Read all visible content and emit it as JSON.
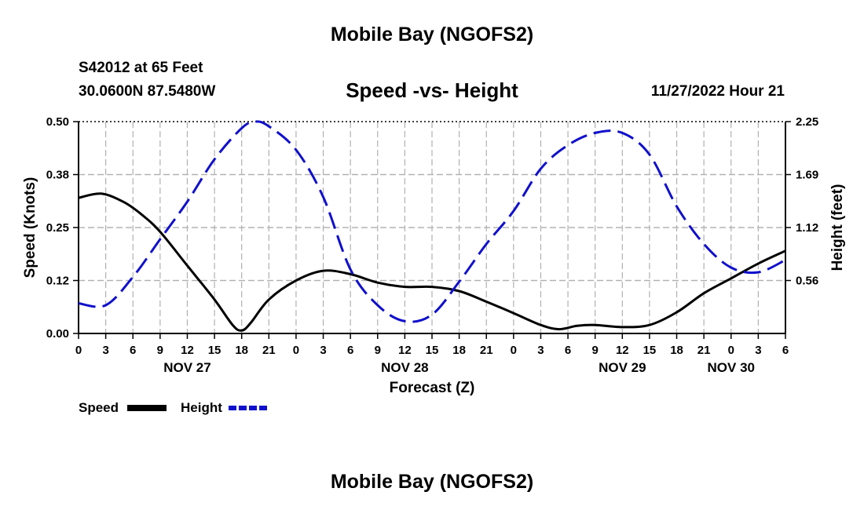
{
  "header": {
    "title": "Mobile Bay (NGOFS2)",
    "station": "S42012 at 65 Feet",
    "coordinates": "30.0600N  87.5480W",
    "chart_title": "Speed -vs- Height",
    "run_time": "11/27/2022 Hour 21"
  },
  "footer": {
    "title": "Mobile Bay (NGOFS2)"
  },
  "colors": {
    "speed": "#000000",
    "height": "#1010cc",
    "grid": "#b0b0b0"
  },
  "chart_data": {
    "type": "line",
    "title": "Speed -vs- Height",
    "xlabel": "Forecast (Z)",
    "ylabel_left": "Speed (Knots)",
    "ylabel_right": "Height (feet)",
    "x_unit": "hours since Nov 27 00Z",
    "xlim": [
      0,
      78
    ],
    "ylim_left": [
      0,
      0.5
    ],
    "ylim_right": [
      0,
      2.25
    ],
    "left_ticks": [
      "0.00",
      "0.12",
      "0.25",
      "0.38",
      "0.50"
    ],
    "left_tick_values": [
      0,
      0.125,
      0.25,
      0.375,
      0.5
    ],
    "right_ticks": [
      "0.56",
      "1.12",
      "1.69",
      "2.25"
    ],
    "right_tick_values": [
      0.5625,
      1.125,
      1.6875,
      2.25
    ],
    "x_tick_labels": [
      "0",
      "3",
      "6",
      "9",
      "12",
      "15",
      "18",
      "21",
      "0",
      "3",
      "6",
      "9",
      "12",
      "15",
      "18",
      "21",
      "0",
      "3",
      "6",
      "9",
      "12",
      "15",
      "18",
      "21",
      "0",
      "3",
      "6"
    ],
    "day_labels": [
      {
        "label": "NOV 27",
        "hour": 12
      },
      {
        "label": "NOV 28",
        "hour": 36
      },
      {
        "label": "NOV 29",
        "hour": 60
      },
      {
        "label": "NOV 30",
        "hour": 72
      }
    ],
    "grid": true,
    "legend": "bottom-left",
    "series": [
      {
        "name": "Speed",
        "axis": "left",
        "style": "solid",
        "x": [
          0,
          2.5,
          5,
          7,
          9,
          12,
          15,
          17,
          18,
          19,
          21,
          24,
          27,
          30,
          33,
          36,
          39,
          42,
          45,
          48,
          51,
          53,
          55,
          57,
          60,
          63,
          66,
          69,
          72,
          75,
          78
        ],
        "values": [
          0.32,
          0.33,
          0.31,
          0.28,
          0.24,
          0.16,
          0.08,
          0.02,
          0.007,
          0.025,
          0.08,
          0.125,
          0.148,
          0.14,
          0.12,
          0.11,
          0.11,
          0.1,
          0.075,
          0.048,
          0.02,
          0.01,
          0.018,
          0.02,
          0.015,
          0.02,
          0.05,
          0.095,
          0.13,
          0.165,
          0.195
        ]
      },
      {
        "name": "Height",
        "axis": "right",
        "style": "dashed",
        "x": [
          0,
          3,
          6,
          9,
          12,
          15,
          18,
          19.5,
          21,
          24,
          27,
          30,
          33,
          36,
          39,
          42,
          45,
          48,
          51,
          54,
          57,
          60,
          63,
          66,
          69,
          72,
          75,
          78
        ],
        "values": [
          0.32,
          0.3,
          0.6,
          1.0,
          1.4,
          1.85,
          2.18,
          2.25,
          2.2,
          1.95,
          1.45,
          0.68,
          0.3,
          0.13,
          0.2,
          0.55,
          0.95,
          1.3,
          1.75,
          2.0,
          2.13,
          2.13,
          1.9,
          1.35,
          0.95,
          0.7,
          0.65,
          0.78
        ]
      }
    ]
  }
}
